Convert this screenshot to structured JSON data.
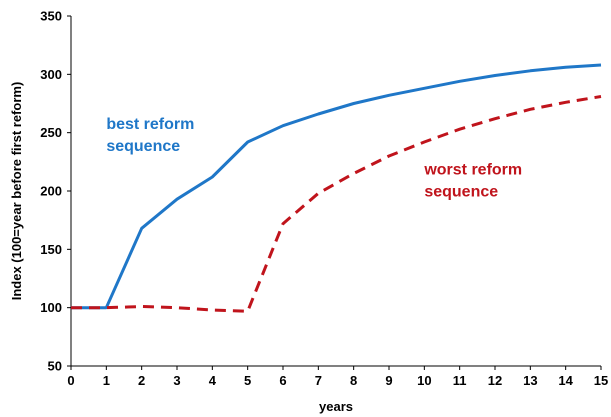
{
  "chart_data": {
    "type": "line",
    "xlabel": "years",
    "ylabel": "Index (100=year before first reform)",
    "xlim": [
      0,
      15
    ],
    "ylim": [
      50,
      350
    ],
    "x_ticks": [
      0,
      1,
      2,
      3,
      4,
      5,
      6,
      7,
      8,
      9,
      10,
      11,
      12,
      13,
      14,
      15
    ],
    "y_ticks": [
      50,
      100,
      150,
      200,
      250,
      300,
      350
    ],
    "grid": false,
    "series": [
      {
        "name": "best reform sequence",
        "color": "#1F77C8",
        "dash": "solid",
        "x": [
          0,
          1,
          2,
          3,
          4,
          5,
          6,
          7,
          8,
          9,
          10,
          11,
          12,
          13,
          14,
          15
        ],
        "y": [
          100,
          100,
          168,
          193,
          212,
          242,
          256,
          266,
          275,
          282,
          288,
          294,
          299,
          303,
          306,
          308
        ]
      },
      {
        "name": "worst reform sequence",
        "color": "#C0141C",
        "dash": "dashed",
        "x": [
          0,
          1,
          2,
          3,
          4,
          5,
          6,
          7,
          8,
          9,
          10,
          11,
          12,
          13,
          14,
          15
        ],
        "y": [
          100,
          100,
          101,
          100,
          98,
          97,
          172,
          198,
          215,
          230,
          242,
          253,
          262,
          270,
          276,
          281
        ]
      }
    ],
    "annotations": [
      {
        "lines": [
          "best reform",
          "sequence"
        ],
        "color": "#1F77C8",
        "x": 1,
        "y": 253
      },
      {
        "lines": [
          "worst reform",
          "sequence"
        ],
        "color": "#C0141C",
        "x": 10,
        "y": 214
      }
    ]
  }
}
